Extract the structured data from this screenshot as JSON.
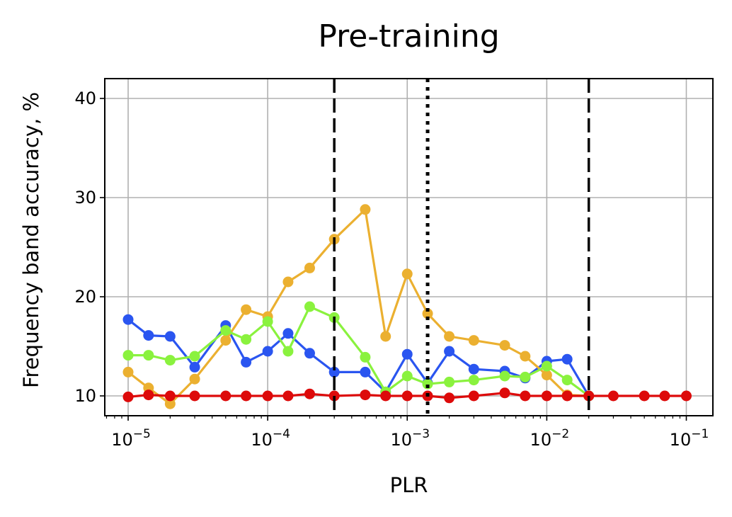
{
  "chart_data": {
    "type": "line",
    "title": "Pre-training",
    "xlabel": "PLR",
    "ylabel": "Frequency band accuracy, %",
    "xscale": "log",
    "xlim": [
      6.8e-06,
      0.155
    ],
    "ylim": [
      8,
      42
    ],
    "grid": true,
    "x_ticks": [
      {
        "value": 1e-05,
        "base": "10",
        "exp": "−5"
      },
      {
        "value": 0.0001,
        "base": "10",
        "exp": "−4"
      },
      {
        "value": 0.001,
        "base": "10",
        "exp": "−3"
      },
      {
        "value": 0.01,
        "base": "10",
        "exp": "−2"
      },
      {
        "value": 0.1,
        "base": "10",
        "exp": "−1"
      }
    ],
    "y_ticks": [
      {
        "value": 10,
        "label": "10"
      },
      {
        "value": 20,
        "label": "20"
      },
      {
        "value": 30,
        "label": "30"
      },
      {
        "value": 40,
        "label": "40"
      }
    ],
    "vertical_lines": [
      {
        "x": 0.0003,
        "style": "dashed"
      },
      {
        "x": 0.0014,
        "style": "dotted"
      },
      {
        "x": 0.02,
        "style": "dashed"
      }
    ],
    "series": [
      {
        "color": "#2a55f0",
        "x": [
          1e-05,
          1.4e-05,
          2e-05,
          3e-05,
          5e-05,
          7e-05,
          0.0001,
          0.00014,
          0.0002,
          0.0003,
          0.0005,
          0.0007,
          0.001,
          0.0014,
          0.002,
          0.003,
          0.005,
          0.007,
          0.01,
          0.014,
          0.02
        ],
        "y": [
          17.7,
          16.1,
          16.0,
          12.9,
          17.1,
          13.4,
          14.5,
          16.3,
          14.3,
          12.4,
          12.4,
          10.4,
          14.2,
          11.3,
          14.5,
          12.7,
          12.5,
          11.8,
          13.5,
          13.7,
          10.0
        ]
      },
      {
        "color": "#ebb030",
        "x": [
          1e-05,
          1.4e-05,
          2e-05,
          3e-05,
          5e-05,
          7e-05,
          0.0001,
          0.00014,
          0.0002,
          0.0003,
          0.0005,
          0.0007,
          0.001,
          0.0014,
          0.002,
          0.003,
          0.005,
          0.007,
          0.01,
          0.014,
          0.02
        ],
        "y": [
          12.4,
          10.8,
          9.2,
          11.7,
          15.6,
          18.7,
          18.0,
          21.5,
          22.9,
          25.8,
          28.8,
          16.0,
          22.3,
          18.3,
          16.0,
          15.6,
          15.1,
          14.0,
          12.1,
          10.1,
          10.0
        ]
      },
      {
        "color": "#8af23e",
        "x": [
          1e-05,
          1.4e-05,
          2e-05,
          3e-05,
          5e-05,
          7e-05,
          0.0001,
          0.00014,
          0.0002,
          0.0003,
          0.0005,
          0.0007,
          0.001,
          0.0014,
          0.002,
          0.003,
          0.005,
          0.007,
          0.01,
          0.014,
          0.02
        ],
        "y": [
          14.1,
          14.1,
          13.6,
          14.0,
          16.6,
          15.7,
          17.5,
          14.5,
          19.0,
          17.9,
          13.9,
          10.4,
          12.0,
          11.2,
          11.4,
          11.6,
          12.0,
          11.9,
          13.0,
          11.6,
          10.0
        ]
      },
      {
        "color": "#dd0a0a",
        "x": [
          1e-05,
          1.4e-05,
          2e-05,
          3e-05,
          5e-05,
          7e-05,
          0.0001,
          0.00014,
          0.0002,
          0.0003,
          0.0005,
          0.0007,
          0.001,
          0.0014,
          0.002,
          0.003,
          0.005,
          0.007,
          0.01,
          0.014,
          0.02,
          0.03,
          0.05,
          0.07,
          0.1
        ],
        "y": [
          9.9,
          10.1,
          10.0,
          10.0,
          10.0,
          10.0,
          10.0,
          10.0,
          10.2,
          10.0,
          10.1,
          10.0,
          10.0,
          10.0,
          9.8,
          10.0,
          10.3,
          10.0,
          10.0,
          10.0,
          10.0,
          10.0,
          10.0,
          10.0,
          10.0
        ]
      }
    ]
  }
}
